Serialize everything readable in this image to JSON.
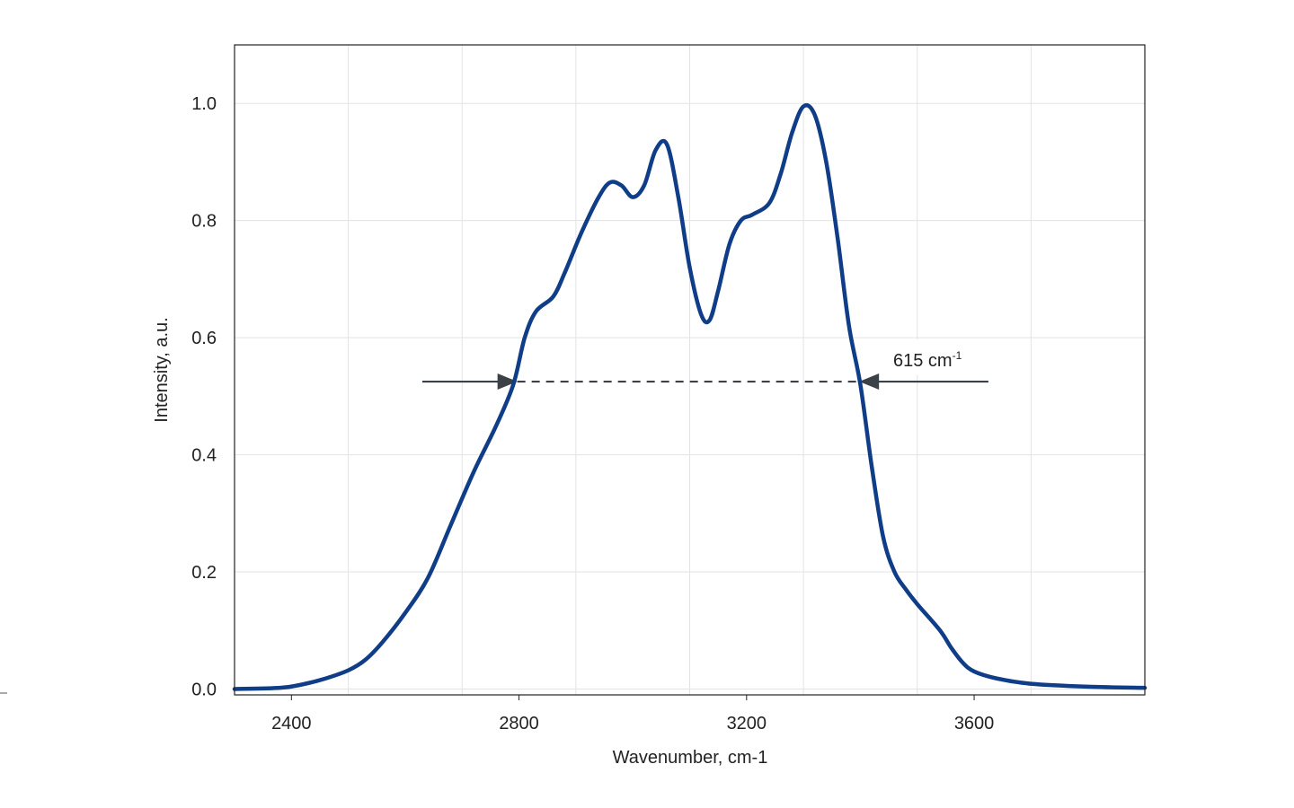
{
  "chart_data": {
    "type": "line",
    "title": "",
    "xlabel": "Wavenumber, cm-1",
    "ylabel": "Intensity, a.u.",
    "xlim": [
      2300,
      3900
    ],
    "ylim": [
      -0.01,
      1.1
    ],
    "xticks": [
      2400,
      2800,
      3200,
      3600
    ],
    "xtick_labels": [
      "2400",
      "2800",
      "3200",
      "3600"
    ],
    "yticks": [
      0.0,
      0.2,
      0.4,
      0.6,
      0.8,
      1.0
    ],
    "ytick_labels": [
      "0.0",
      "0.2",
      "0.4",
      "0.6",
      "0.8",
      "1.0"
    ],
    "grid": true,
    "series": [
      {
        "color": "#0f3d87",
        "x": [
          2300,
          2380,
          2420,
          2460,
          2500,
          2530,
          2560,
          2600,
          2640,
          2680,
          2720,
          2760,
          2790,
          2810,
          2830,
          2860,
          2880,
          2910,
          2940,
          2960,
          2980,
          3000,
          3020,
          3040,
          3060,
          3080,
          3100,
          3120,
          3135,
          3150,
          3170,
          3190,
          3210,
          3240,
          3260,
          3280,
          3300,
          3320,
          3340,
          3360,
          3380,
          3400,
          3420,
          3440,
          3460,
          3480,
          3500,
          3540,
          3560,
          3580,
          3600,
          3640,
          3700,
          3800,
          3900
        ],
        "y": [
          0.0,
          0.002,
          0.008,
          0.018,
          0.032,
          0.05,
          0.08,
          0.13,
          0.19,
          0.28,
          0.37,
          0.45,
          0.52,
          0.6,
          0.645,
          0.67,
          0.71,
          0.78,
          0.84,
          0.865,
          0.86,
          0.84,
          0.86,
          0.92,
          0.93,
          0.84,
          0.72,
          0.64,
          0.63,
          0.68,
          0.76,
          0.8,
          0.81,
          0.83,
          0.88,
          0.95,
          0.995,
          0.98,
          0.9,
          0.77,
          0.62,
          0.52,
          0.38,
          0.26,
          0.2,
          0.17,
          0.145,
          0.1,
          0.07,
          0.045,
          0.03,
          0.018,
          0.009,
          0.004,
          0.002
        ]
      }
    ],
    "annotations": [
      {
        "type": "fwhm",
        "label_main": "615 cm",
        "label_sup": "-1",
        "y": 0.525,
        "x_left": 2797,
        "x_right": 3398,
        "arrow_from_left": 2630,
        "arrow_from_right": 3625
      }
    ]
  },
  "colors": {
    "line": "#0f3d87",
    "grid": "#e3e3e3",
    "axis": "#222222",
    "annotation": "#3c4147"
  }
}
